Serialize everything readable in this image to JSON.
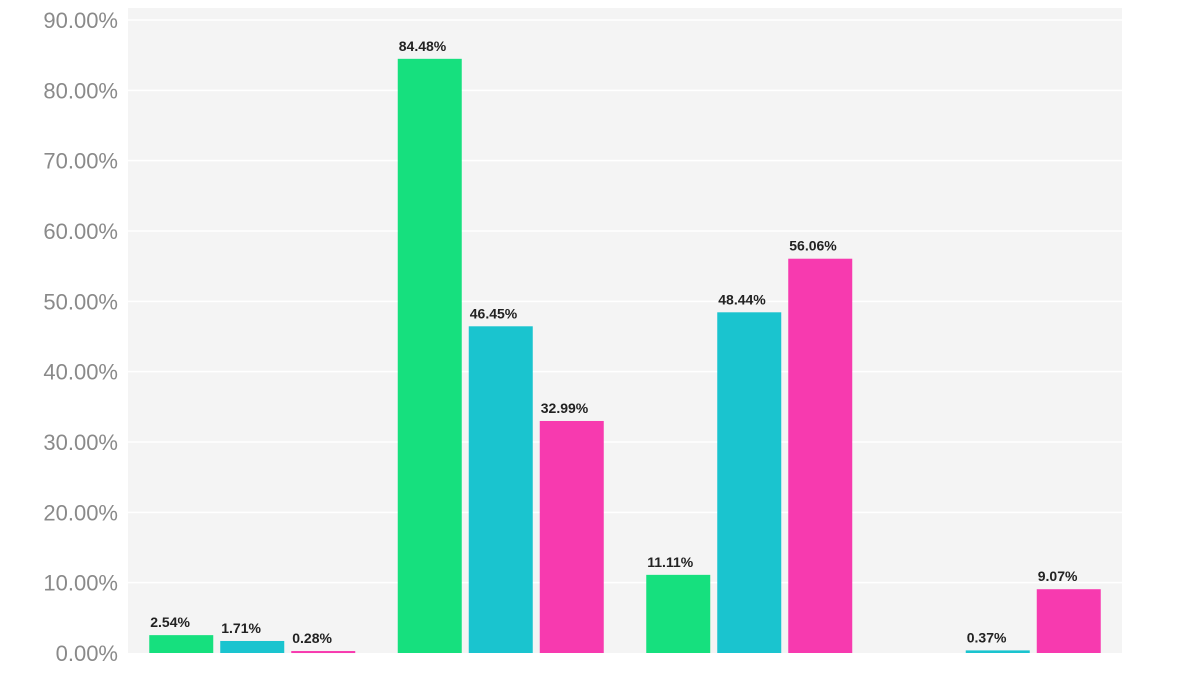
{
  "chart_data": {
    "type": "bar",
    "title": "",
    "xlabel": "",
    "ylabel": "",
    "ylim": [
      0,
      90
    ],
    "y_ticks": [
      0,
      10,
      20,
      30,
      40,
      50,
      60,
      70,
      80,
      90
    ],
    "y_tick_labels": [
      "0.00%",
      "10.00%",
      "20.00%",
      "30.00%",
      "40.00%",
      "50.00%",
      "60.00%",
      "70.00%",
      "80.00%",
      "90.00%"
    ],
    "categories": [
      "",
      "",
      "",
      ""
    ],
    "grid": true,
    "legend": "none",
    "series": [
      {
        "color": "#16e07e",
        "values": [
          2.54,
          84.48,
          11.11,
          0
        ],
        "labels": [
          "2.54%",
          "84.48%",
          "11.11%",
          ""
        ]
      },
      {
        "color": "#1ac4cf",
        "values": [
          1.71,
          46.45,
          48.44,
          0.37
        ],
        "labels": [
          "1.71%",
          "46.45%",
          "48.44%",
          "0.37%"
        ]
      },
      {
        "color": "#f73aaf",
        "values": [
          0.28,
          32.99,
          56.06,
          9.07
        ],
        "labels": [
          "0.28%",
          "32.99%",
          "56.06%",
          "9.07%"
        ]
      }
    ]
  }
}
